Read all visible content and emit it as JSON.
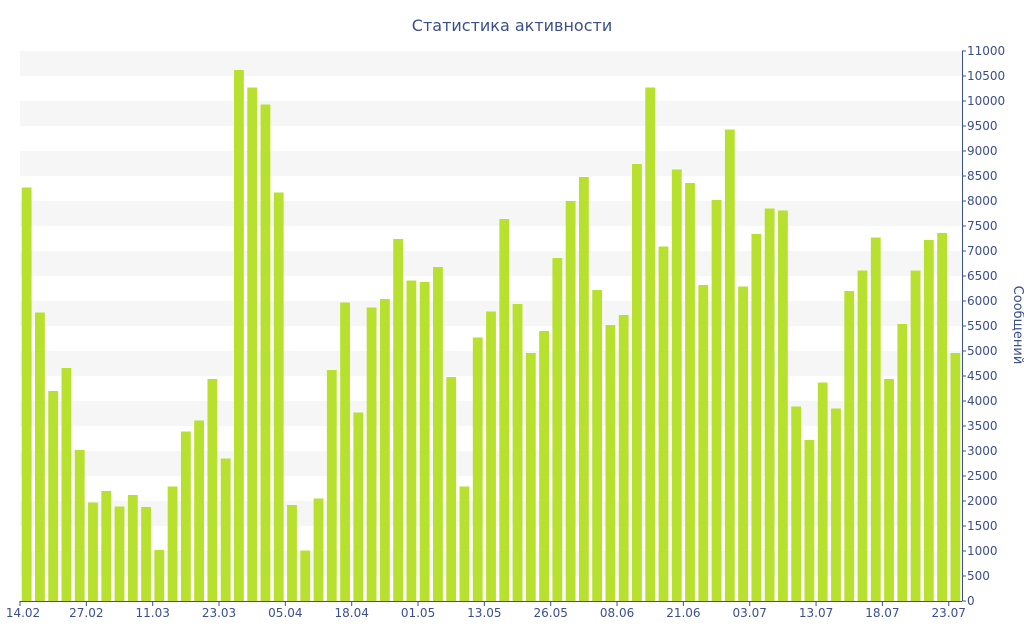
{
  "chart_data": {
    "type": "bar",
    "title": "Статистика активности",
    "ylabel": "Сообщений",
    "xlabel": "",
    "ylim": [
      0,
      11000
    ],
    "y_ticks": [
      0,
      500,
      1000,
      1500,
      2000,
      2500,
      3000,
      3500,
      4000,
      4500,
      5000,
      5500,
      6000,
      6500,
      7000,
      7500,
      8000,
      8500,
      9000,
      9500,
      10000,
      10500,
      11000
    ],
    "y_axis_position": "right",
    "grid": "horizontal alternating bands",
    "bar_color": "#b8e02e",
    "text_color": "#3b4f8c",
    "band_color": "#f6f6f6",
    "x_tick_labels": [
      {
        "index": 0,
        "label": "14.02"
      },
      {
        "index": 5,
        "label": "27.02"
      },
      {
        "index": 10,
        "label": "11.03"
      },
      {
        "index": 15,
        "label": "23.03"
      },
      {
        "index": 20,
        "label": "05.04"
      },
      {
        "index": 25,
        "label": "18.04"
      },
      {
        "index": 30,
        "label": "01.05"
      },
      {
        "index": 35,
        "label": "13.05"
      },
      {
        "index": 40,
        "label": "26.05"
      },
      {
        "index": 45,
        "label": "08.06"
      },
      {
        "index": 50,
        "label": "21.06"
      },
      {
        "index": 55,
        "label": "03.07"
      },
      {
        "index": 60,
        "label": "13.07"
      },
      {
        "index": 65,
        "label": "18.07"
      },
      {
        "index": 70,
        "label": "23.07"
      }
    ],
    "values": [
      8270,
      5770,
      4200,
      4660,
      3020,
      1970,
      2200,
      1890,
      2120,
      1880,
      1020,
      2290,
      3390,
      3610,
      4440,
      2850,
      10620,
      10270,
      9930,
      8170,
      1920,
      1010,
      2050,
      4620,
      5970,
      3770,
      5870,
      6040,
      7240,
      6410,
      6380,
      6680,
      4480,
      2290,
      5270,
      5790,
      7640,
      5940,
      4960,
      5400,
      6860,
      8000,
      8480,
      6220,
      5520,
      5720,
      8740,
      10270,
      7090,
      8630,
      8360,
      6320,
      8020,
      9430,
      6290,
      7340,
      7850,
      7810,
      3890,
      3220,
      4370,
      3850,
      6200,
      6610,
      7270,
      4440,
      5540,
      6610,
      7220,
      7360,
      4960
    ]
  }
}
